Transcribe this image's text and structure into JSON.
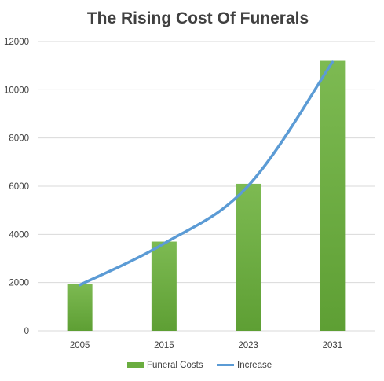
{
  "chart_data": {
    "type": "bar",
    "title": "The Rising Cost Of Funerals",
    "categories": [
      "2005",
      "2015",
      "2023",
      "2031"
    ],
    "series": [
      {
        "name": "Funeral Costs",
        "type": "bar",
        "values": [
          1950,
          3700,
          6100,
          11200
        ],
        "color": "#6aad3f"
      },
      {
        "name": "Increase",
        "type": "line",
        "values": [
          1900,
          3620,
          6020,
          11150
        ],
        "color": "#5b9bd5"
      }
    ],
    "ylim": [
      0,
      12000
    ],
    "yticks": [
      "0",
      "2000",
      "4000",
      "6000",
      "8000",
      "10000",
      "12000"
    ],
    "grid": true,
    "legend": "bottom",
    "colors": {
      "gridline": "#d9d9d9",
      "bar_light": "#7dba52",
      "bar_dark": "#5e9f34"
    }
  }
}
